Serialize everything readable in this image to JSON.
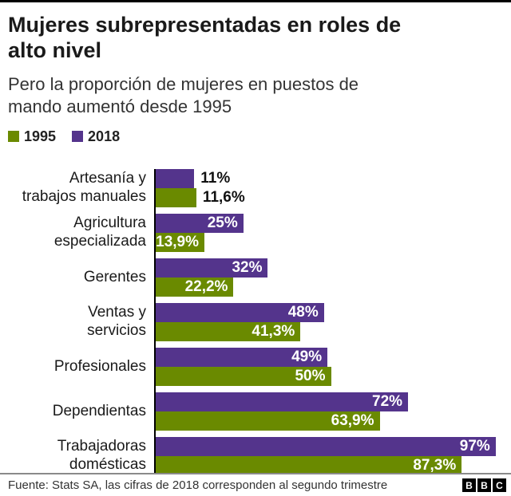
{
  "header": {
    "title": "Mujeres subrepresentadas en roles de alto nivel",
    "subtitle": "Pero la proporción de mujeres en puestos de mando aumentó desde 1995"
  },
  "legend": [
    {
      "label": "1995",
      "color": "#6a8a00"
    },
    {
      "label": "2018",
      "color": "#54348c"
    }
  ],
  "chart_data": {
    "type": "bar",
    "orientation": "horizontal",
    "title": "Mujeres subrepresentadas en roles de alto nivel",
    "subtitle": "Pero la proporción de mujeres en puestos de mando aumentó desde 1995",
    "xlim": [
      0,
      100
    ],
    "grid": false,
    "legend_position": "top-left",
    "categories": [
      "Artesanía y\ntrabajos manuales",
      "Agricultura\nespecializada",
      "Gerentes",
      "Ventas y\nservicios",
      "Profesionales",
      "Dependientas",
      "Trabajadoras\ndomésticas"
    ],
    "series": [
      {
        "name": "2018",
        "color": "#54348c",
        "values": [
          11,
          25,
          32,
          48,
          49,
          72,
          97
        ],
        "labels": [
          "11%",
          "25%",
          "32%",
          "48%",
          "49%",
          "72%",
          "97%"
        ]
      },
      {
        "name": "1995",
        "color": "#6a8a00",
        "values": [
          11.6,
          13.9,
          22.2,
          41.3,
          50,
          63.9,
          87.3
        ],
        "labels": [
          "11,6%",
          "13,9%",
          "22,2%",
          "41,3%",
          "50%",
          "63,9%",
          "87,3%"
        ]
      }
    ]
  },
  "footer": {
    "source": "Fuente: Stats SA, las cifras de 2018 corresponden al segundo trimestre",
    "logo": [
      "B",
      "B",
      "C"
    ]
  }
}
